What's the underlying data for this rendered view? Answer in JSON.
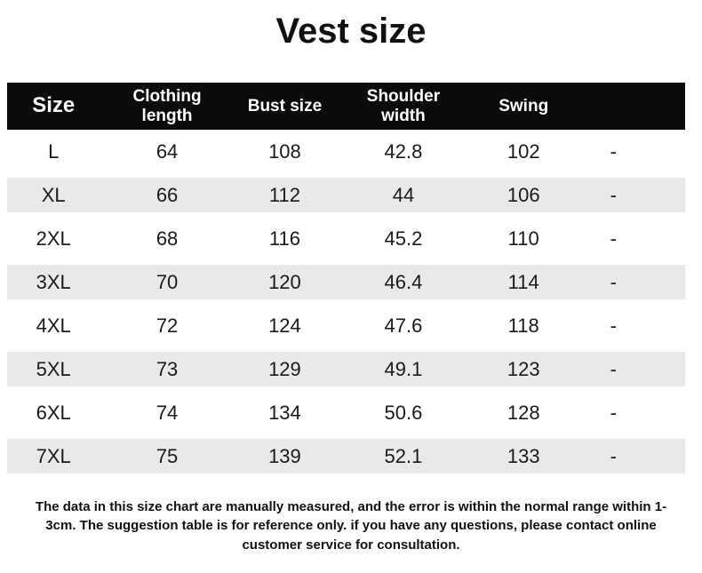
{
  "title": "Vest size",
  "chart_data": {
    "type": "table",
    "title": "Vest size",
    "columns": [
      "Size",
      "Clothing length",
      "Bust size",
      "Shoulder width",
      "Swing",
      ""
    ],
    "rows": [
      [
        "L",
        "64",
        "108",
        "42.8",
        "102",
        "-"
      ],
      [
        "XL",
        "66",
        "112",
        "44",
        "106",
        "-"
      ],
      [
        "2XL",
        "68",
        "116",
        "45.2",
        "110",
        "-"
      ],
      [
        "3XL",
        "70",
        "120",
        "46.4",
        "114",
        "-"
      ],
      [
        "4XL",
        "72",
        "124",
        "47.6",
        "118",
        "-"
      ],
      [
        "5XL",
        "73",
        "129",
        "49.1",
        "123",
        "-"
      ],
      [
        "6XL",
        "74",
        "134",
        "50.6",
        "128",
        "-"
      ],
      [
        "7XL",
        "75",
        "139",
        "52.1",
        "133",
        "-"
      ]
    ],
    "layout": {
      "striped_rows": [
        "XL",
        "3XL",
        "5XL",
        "7XL"
      ],
      "header_style": "black-bar-white-text"
    }
  },
  "footer": {
    "note": "The data in this size chart are manually measured, and the error is within the normal range within 1-3cm. The suggestion table is for reference only. if you have any questions, please contact online customer service for consultation."
  },
  "colors": {
    "header_bg": "#0b0b0b",
    "header_text": "#ffffff",
    "stripe": "#e9e9e9",
    "body_text": "#1a1a1a",
    "background": "#ffffff"
  }
}
